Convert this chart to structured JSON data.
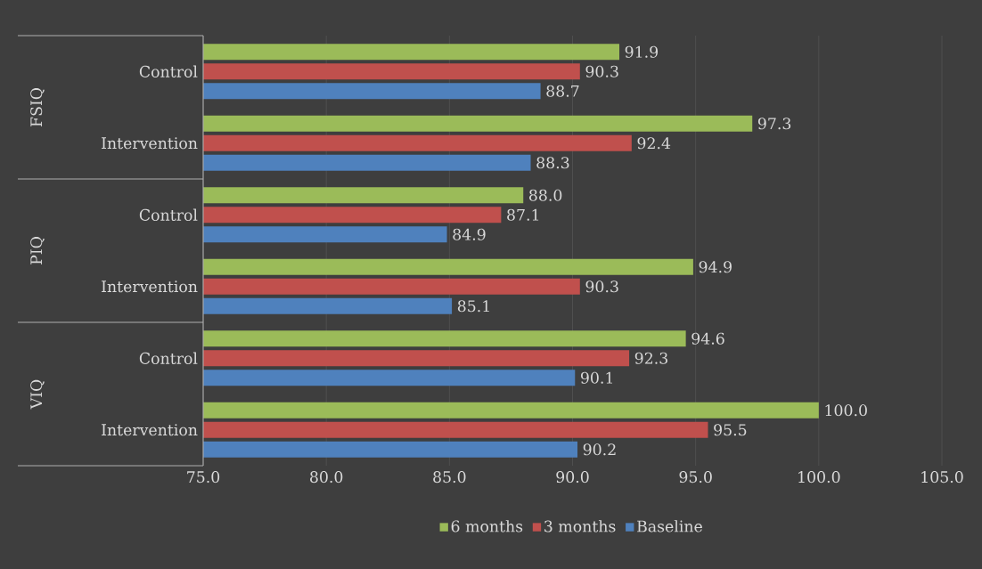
{
  "chart_data": {
    "type": "bar",
    "orientation": "horizontal",
    "categories": [
      "Control",
      "Intervention",
      "Control",
      "Intervention",
      "Control",
      "Intervention"
    ],
    "annotations": [
      "FSIQ",
      "PIQ",
      "VIQ"
    ],
    "series": [
      {
        "name": "6 months",
        "color": "#9bbb59",
        "values": [
          91.9,
          97.3,
          88.0,
          94.9,
          94.6,
          100.0
        ],
        "value_labels": [
          "91.9",
          "97.3",
          "88.0",
          "94.9",
          "94.6",
          "100.0"
        ]
      },
      {
        "name": "3 months",
        "color": "#c0504d",
        "values": [
          90.3,
          92.4,
          87.1,
          90.3,
          92.3,
          95.5
        ],
        "value_labels": [
          "90.3",
          "92.4",
          "87.1",
          "90.3",
          "92.3",
          "95.5"
        ]
      },
      {
        "name": "Baseline",
        "color": "#4f81bd",
        "values": [
          88.7,
          88.3,
          84.9,
          85.1,
          90.1,
          90.2
        ],
        "value_labels": [
          "88.7",
          "88.3",
          "84.9",
          "85.1",
          "90.1",
          "90.2"
        ]
      }
    ],
    "xlim": [
      75,
      105
    ],
    "xticks": [
      {
        "value": 75,
        "label": "75.0"
      },
      {
        "value": 80,
        "label": "80.0"
      },
      {
        "value": 85,
        "label": "85.0"
      },
      {
        "value": 90,
        "label": "90.0"
      },
      {
        "value": 95,
        "label": "95.0"
      },
      {
        "value": 100,
        "label": "100.0"
      },
      {
        "value": 105,
        "label": "105.0"
      }
    ],
    "grid": "x",
    "legend": "bottom"
  }
}
